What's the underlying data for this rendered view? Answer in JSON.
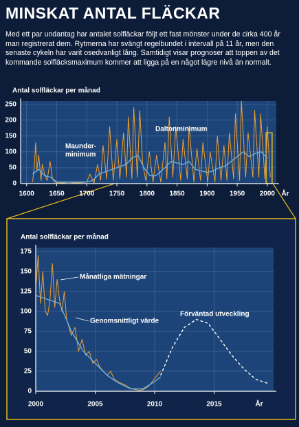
{
  "header": {
    "title": "MINSKAT ANTAL FLÄCKAR",
    "text": "Med ett par undantag har antalet solfläckar följt ett fast mönster under de cirka 400 år man registrerat dem. Rytmerna har svängt regelbundet i intervall på 11 år, men den senaste cykeln har varit osedvanligt lång. Samtidigt visar prognoser att toppen av det kommande solfläcksmaximum kommer att ligga på en något lägre nivå än normalt."
  },
  "chart_data": [
    {
      "type": "line",
      "y_label": "Antal solfläckar per månad",
      "x_label": "År",
      "xlim": [
        1590,
        2015
      ],
      "xticks": [
        1600,
        1650,
        1700,
        1750,
        1800,
        1850,
        1900,
        1950,
        2000
      ],
      "ylim": [
        0,
        260
      ],
      "yticks": [
        0,
        50,
        100,
        150,
        200,
        250
      ],
      "grid": true,
      "annotations": [
        [
          "Maunder-",
          "minimum"
        ],
        [
          "Daltonminimum"
        ]
      ],
      "series": [
        {
          "color": "#f0a030",
          "x": [
            1610,
            1613,
            1615,
            1617,
            1620,
            1624,
            1626,
            1630,
            1634,
            1639,
            1643,
            1646,
            1650,
            1660,
            1670,
            1680,
            1690,
            1700,
            1705,
            1712,
            1718,
            1723,
            1727,
            1733,
            1738,
            1744,
            1750,
            1755,
            1761,
            1766,
            1769,
            1775,
            1778,
            1784,
            1788,
            1793,
            1798,
            1804,
            1810,
            1816,
            1823,
            1830,
            1833,
            1837,
            1843,
            1848,
            1856,
            1860,
            1867,
            1870,
            1878,
            1883,
            1889,
            1893,
            1901,
            1905,
            1913,
            1917,
            1923,
            1928,
            1933,
            1937,
            1944,
            1947,
            1954,
            1957,
            1964,
            1968,
            1976,
            1979,
            1986,
            1989,
            1996,
            2000,
            2005
          ],
          "values": [
            5,
            60,
            130,
            40,
            90,
            10,
            60,
            30,
            10,
            70,
            15,
            5,
            3,
            2,
            5,
            2,
            3,
            5,
            30,
            2,
            60,
            10,
            120,
            15,
            180,
            10,
            140,
            15,
            160,
            20,
            210,
            15,
            240,
            20,
            230,
            60,
            10,
            100,
            5,
            90,
            5,
            130,
            15,
            210,
            20,
            180,
            10,
            140,
            15,
            180,
            5,
            110,
            10,
            130,
            5,
            100,
            5,
            150,
            10,
            120,
            10,
            160,
            15,
            220,
            10,
            260,
            20,
            160,
            20,
            230,
            20,
            220,
            15,
            180,
            20
          ]
        },
        {
          "color": "#6ab0e0",
          "x": [
            1610,
            1620,
            1630,
            1640,
            1650,
            1700,
            1710,
            1720,
            1735,
            1750,
            1765,
            1775,
            1785,
            1795,
            1805,
            1815,
            1830,
            1840,
            1850,
            1860,
            1870,
            1880,
            1890,
            1900,
            1910,
            1920,
            1930,
            1940,
            1950,
            1960,
            1970,
            1980,
            1990,
            2000
          ],
          "values": [
            30,
            45,
            25,
            20,
            5,
            5,
            10,
            30,
            40,
            50,
            60,
            80,
            90,
            50,
            25,
            25,
            50,
            70,
            65,
            60,
            70,
            45,
            40,
            35,
            40,
            50,
            55,
            70,
            85,
            100,
            85,
            95,
            100,
            80
          ]
        }
      ]
    },
    {
      "type": "line",
      "y_label": "Antal solfläckar per månad",
      "x_label": "År",
      "xlim": [
        2000,
        2020
      ],
      "xticks": [
        2000,
        2005,
        2010,
        2015
      ],
      "ylim": [
        0,
        180
      ],
      "yticks": [
        0,
        25,
        50,
        75,
        100,
        125,
        150,
        175
      ],
      "grid": true,
      "annotations": [
        [
          "Månatliga mätningar"
        ],
        [
          "Genomsnittligt värde"
        ],
        [
          "Förväntad utveckling"
        ]
      ],
      "series": [
        {
          "color": "#f0a030",
          "x": [
            2000.0,
            2000.2,
            2000.4,
            2000.6,
            2000.8,
            2001.0,
            2001.2,
            2001.4,
            2001.6,
            2001.8,
            2002.0,
            2002.2,
            2002.4,
            2002.6,
            2002.8,
            2003.0,
            2003.3,
            2003.6,
            2003.9,
            2004.2,
            2004.5,
            2004.8,
            2005.1,
            2005.4,
            2005.7,
            2006.0,
            2006.3,
            2006.6,
            2006.9,
            2007.2,
            2007.5,
            2007.8,
            2008.1,
            2008.4,
            2008.7,
            2009.0,
            2009.3,
            2009.6,
            2009.9,
            2010.2,
            2010.5
          ],
          "values": [
            130,
            170,
            110,
            150,
            100,
            95,
            115,
            160,
            105,
            140,
            115,
            100,
            125,
            90,
            80,
            70,
            80,
            50,
            65,
            45,
            50,
            35,
            40,
            30,
            25,
            20,
            25,
            15,
            12,
            10,
            8,
            5,
            3,
            2,
            1,
            2,
            4,
            8,
            14,
            20,
            25
          ]
        },
        {
          "color": "#6ab0e0",
          "x": [
            2000,
            2001,
            2002,
            2003,
            2004,
            2005,
            2006,
            2007,
            2008,
            2009,
            2010,
            2010.5
          ],
          "values": [
            120,
            115,
            110,
            75,
            50,
            35,
            20,
            10,
            3,
            3,
            12,
            18
          ]
        },
        {
          "color": "#ffffff",
          "style": "dashed",
          "x": [
            2010.5,
            2011.5,
            2012.5,
            2013.5,
            2014.5,
            2015.5,
            2016.5,
            2017.5,
            2018.5,
            2019.5
          ],
          "values": [
            20,
            55,
            80,
            90,
            85,
            65,
            45,
            28,
            15,
            10
          ]
        }
      ]
    }
  ]
}
